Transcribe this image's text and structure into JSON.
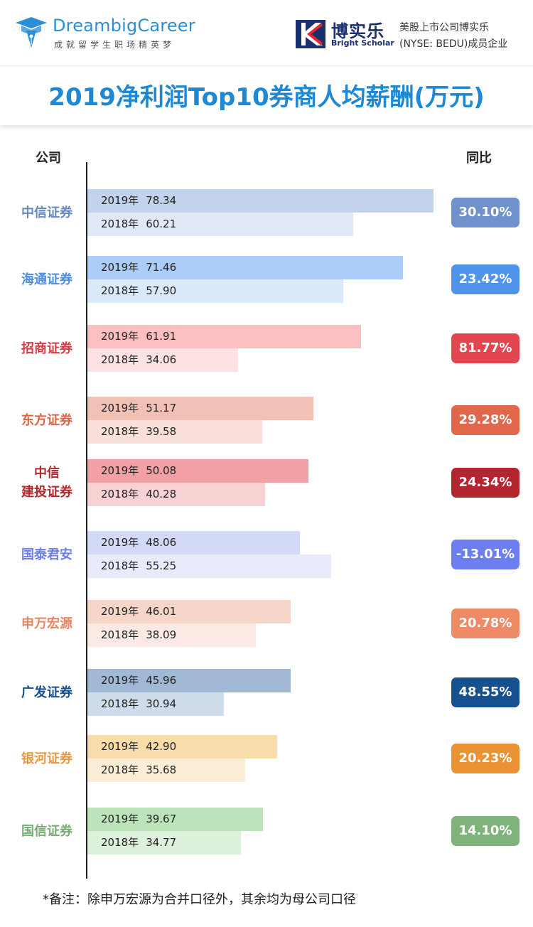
{
  "header": {
    "brand_left_name": "DreambigCareer",
    "brand_left_slogan": "成就留学生职场精英梦",
    "brand_right_cn": "博实乐",
    "brand_right_en": "Bright Scholar",
    "brand_right_desc_line1": "美股上市公司博实乐",
    "brand_right_desc_line2": "(NYSE: BEDU)成员企业",
    "brand_left_color": "#2c8fd6",
    "brand_right_color": "#1a2f6e"
  },
  "chart_data": {
    "type": "bar",
    "title": "2019净利润Top10券商人均薪酬(万元)",
    "xlabel": "",
    "ylabel": "公司",
    "yoy_label": "同比",
    "year_labels": [
      "2019年",
      "2018年"
    ],
    "xlim": [
      0,
      80
    ],
    "grid": false,
    "orientation": "horizontal",
    "categories": [
      {
        "name_lines": [
          "中信证券"
        ],
        "v2019": 78.34,
        "v2018": 60.21,
        "yoy": "30.10%",
        "color_2019": "#c3d3ee",
        "color_2018": "#e1e9f6",
        "badge": "#6f92cc",
        "text": "#6688c2"
      },
      {
        "name_lines": [
          "海通证券"
        ],
        "v2019": 71.46,
        "v2018": 57.9,
        "yoy": "23.42%",
        "color_2019": "#accdfa",
        "color_2018": "#dbe9fc",
        "badge": "#4f94ea",
        "text": "#4f8fdf"
      },
      {
        "name_lines": [
          "招商证券"
        ],
        "v2019": 61.91,
        "v2018": 34.06,
        "yoy": "81.77%",
        "color_2019": "#fcbfc2",
        "color_2018": "#fde2e3",
        "badge": "#e3464f",
        "text": "#d83c45"
      },
      {
        "name_lines": [
          "东方证券"
        ],
        "v2019": 51.17,
        "v2018": 39.58,
        "yoy": "29.28%",
        "color_2019": "#f2c1b5",
        "color_2018": "#f9e0da",
        "badge": "#e0674c",
        "text": "#d9664b"
      },
      {
        "name_lines": [
          "中信",
          "建投证券"
        ],
        "v2019": 50.08,
        "v2018": 40.28,
        "yoy": "24.34%",
        "color_2019": "#f1a1a5",
        "color_2018": "#f8d1d3",
        "badge": "#b3262d",
        "text": "#b3262d"
      },
      {
        "name_lines": [
          "国泰君安"
        ],
        "v2019": 48.06,
        "v2018": 55.25,
        "yoy": "-13.01%",
        "color_2019": "#d3daf7",
        "color_2018": "#e7ebfa",
        "badge": "#6d7ff0",
        "text": "#6d7fe8"
      },
      {
        "name_lines": [
          "申万宏源"
        ],
        "v2019": 46.01,
        "v2018": 38.09,
        "yoy": "20.78%",
        "color_2019": "#f6d6c9",
        "color_2018": "#faeae3",
        "badge": "#ef8a66",
        "text": "#e88663"
      },
      {
        "name_lines": [
          "广发证券"
        ],
        "v2019": 45.96,
        "v2018": 30.94,
        "yoy": "48.55%",
        "color_2019": "#a1b9d4",
        "color_2018": "#cfdcea",
        "badge": "#17508f",
        "text": "#17508f"
      },
      {
        "name_lines": [
          "银河证券"
        ],
        "v2019": 42.9,
        "v2018": 35.68,
        "yoy": "20.23%",
        "color_2019": "#f8dcaa",
        "color_2018": "#fcedd6",
        "badge": "#e99334",
        "text": "#e49a45"
      },
      {
        "name_lines": [
          "国信证券"
        ],
        "v2019": 39.67,
        "v2018": 34.77,
        "yoy": "14.10%",
        "color_2019": "#bde3bb",
        "color_2018": "#ddf1dc",
        "badge": "#7fb37b",
        "text": "#77ac74"
      }
    ]
  },
  "footnote": "*备注：除申万宏源为合并口径外，其余均为母公司口径"
}
